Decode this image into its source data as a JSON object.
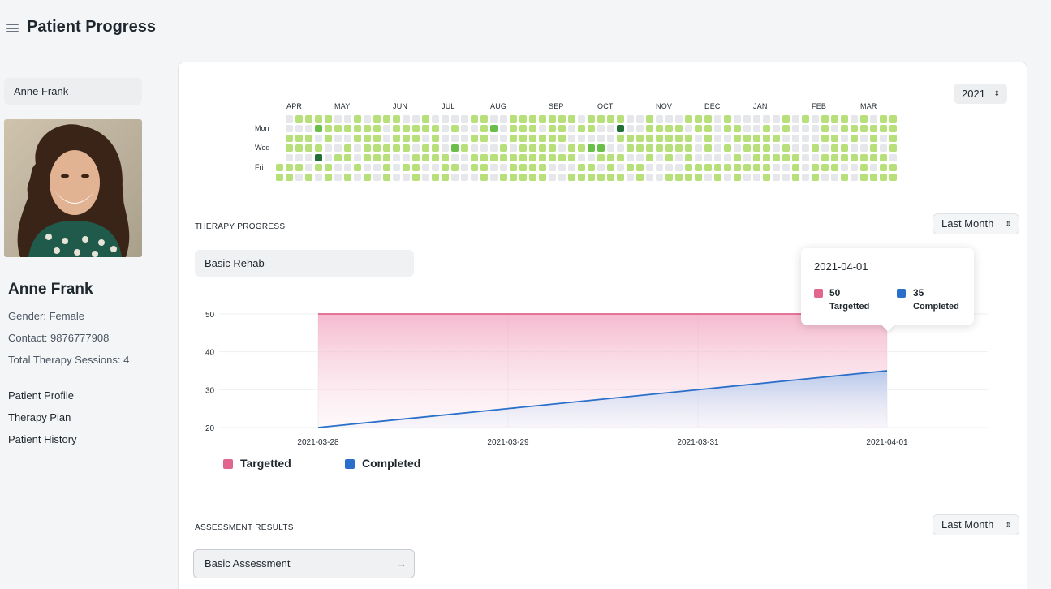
{
  "page": {
    "title": "Patient Progress"
  },
  "sidebar": {
    "patient_select": "Anne Frank",
    "patient": {
      "name": "Anne Frank",
      "gender": "Gender: Female",
      "contact": "Contact: 9876777908",
      "sessions": "Total Therapy Sessions: 4"
    },
    "links": [
      "Patient Profile",
      "Therapy Plan",
      "Patient History"
    ]
  },
  "heatmap": {
    "year": "2021",
    "months": [
      "APR",
      "MAY",
      "JUN",
      "JUL",
      "AUG",
      "SEP",
      "OCT",
      "NOV",
      "DEC",
      "JAN",
      "FEB",
      "MAR"
    ],
    "day_labels": [
      "Mon",
      "Wed",
      "Fri"
    ],
    "colors": {
      "empty": "#e5e7ea",
      "low": "#b8e07a",
      "mid": "#6abf4b",
      "high": "#216e39"
    }
  },
  "therapy_progress": {
    "label": "THERAPY PROGRESS",
    "range": "Last Month",
    "therapy_type": "Basic Rehab",
    "tooltip": {
      "date": "2021-04-01",
      "targetted_value": "50",
      "targetted_label": "Targetted",
      "completed_value": "35",
      "completed_label": "Completed"
    },
    "legend": [
      "Targetted",
      "Completed"
    ],
    "colors": {
      "targetted": "#e2658e",
      "completed": "#2a6fca"
    }
  },
  "chart_data": {
    "type": "area",
    "categories": [
      "2021-03-28",
      "2021-03-29",
      "2021-03-31",
      "2021-04-01"
    ],
    "series": [
      {
        "name": "Targetted",
        "values": [
          50,
          50,
          50,
          50
        ]
      },
      {
        "name": "Completed",
        "values": [
          20,
          25,
          30,
          35
        ]
      }
    ],
    "yticks": [
      20,
      30,
      40,
      50
    ],
    "ylim": [
      20,
      50
    ],
    "grid": true,
    "legend": "bottom-left"
  },
  "assessment": {
    "label": "ASSESSMENT RESULTS",
    "range": "Last Month",
    "assessment_type": "Basic Assessment",
    "arrow": "→"
  }
}
